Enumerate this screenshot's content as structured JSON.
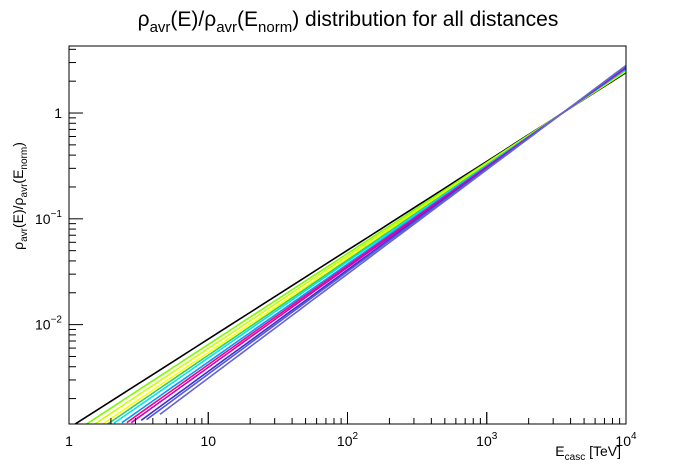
{
  "chart_data": {
    "type": "line",
    "title": {
      "p1": "ρ",
      "s1": "avr",
      "p2": "(E)/ρ",
      "s2": "avr",
      "p3": "(E",
      "s3": "norm",
      "p4": ") distribution for all distances"
    },
    "xlabel": {
      "main": "E",
      "sub": "casc",
      "rest": " [TeV]"
    },
    "ylabel": {
      "p1": "ρ",
      "s1": "avr",
      "p2": "(E)/ρ",
      "s2": "avr",
      "p3": "(E",
      "s3": "norm",
      "p4": ")"
    },
    "x_scale": "log",
    "y_scale": "log",
    "xlim": [
      1,
      10000
    ],
    "ylim": [
      0.00115,
      4.3
    ],
    "grid": false,
    "legend": "none",
    "x_ticks": [
      {
        "value": 1,
        "base": "1",
        "exp": ""
      },
      {
        "value": 10,
        "base": "10",
        "exp": ""
      },
      {
        "value": 100,
        "base": "10",
        "exp": "2"
      },
      {
        "value": 1000,
        "base": "10",
        "exp": "3"
      },
      {
        "value": 10000,
        "base": "10",
        "exp": "4"
      }
    ],
    "y_ticks": [
      {
        "value": 0.01,
        "base": "10",
        "exp": "−2"
      },
      {
        "value": 0.1,
        "base": "10",
        "exp": "−1"
      },
      {
        "value": 1,
        "base": "1",
        "exp": ""
      }
    ],
    "pivot": {
      "x": 3500,
      "y": 1.0
    },
    "series": [
      {
        "color": "#000000",
        "x": [
          1,
          10000
        ],
        "slope": 0.84
      },
      {
        "color": "#7cfc00",
        "x": [
          1.25,
          10000
        ],
        "slope": 0.86
      },
      {
        "color": "#ccff00",
        "x": [
          1.45,
          10000
        ],
        "slope": 0.875
      },
      {
        "color": "#ffff00",
        "x": [
          1.7,
          10000
        ],
        "slope": 0.89
      },
      {
        "color": "#33cc66",
        "x": [
          1.9,
          10000
        ],
        "slope": 0.9
      },
      {
        "color": "#00e5ee",
        "x": [
          2.1,
          10000
        ],
        "slope": 0.91
      },
      {
        "color": "#0099ff",
        "x": [
          2.4,
          10000
        ],
        "slope": 0.925
      },
      {
        "color": "#ff0080",
        "x": [
          2.6,
          10000
        ],
        "slope": 0.935
      },
      {
        "color": "#cc00cc",
        "x": [
          2.8,
          10000
        ],
        "slope": 0.945
      },
      {
        "color": "#3333cc",
        "x": [
          3.3,
          10000
        ],
        "slope": 0.96
      },
      {
        "color": "#5555dd",
        "x": [
          3.6,
          10000
        ],
        "slope": 0.97
      },
      {
        "color": "#6666cc",
        "x": [
          4.5,
          10000
        ],
        "slope": 0.985
      }
    ]
  }
}
